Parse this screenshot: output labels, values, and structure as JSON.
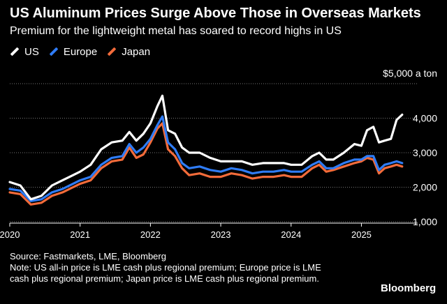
{
  "header": {
    "title": "US Aluminum Prices Surge Above Those in Overseas Markets",
    "subtitle": "Premium for the lightweight metal has soared to record highs in US"
  },
  "legend": [
    {
      "label": "US",
      "color": "#ffffff"
    },
    {
      "label": "Europe",
      "color": "#2f7cf6"
    },
    {
      "label": "Japan",
      "color": "#f26b3a"
    }
  ],
  "footer": {
    "source": "Source: Fastmarkets, LME, Bloomberg",
    "note": "Note: US all-in price is LME cash plus regional premium; Europe price is LME cash plus regional premium; Japan price is LME cash plus regional premium.",
    "brand": "Bloomberg"
  },
  "chart_data": {
    "type": "line",
    "title": "US Aluminum Prices Surge Above Those in Overseas Markets",
    "subtitle": "Premium for the lightweight metal has soared to record highs in US",
    "ylabel": "$5,000 a ton",
    "ylim": [
      1000,
      5000
    ],
    "yticks": [
      1000,
      2000,
      3000,
      4000,
      5000
    ],
    "ytick_labels": [
      "1,000",
      "2,000",
      "3,000",
      "4,000",
      "$5,000 a ton"
    ],
    "xlim": [
      2020.0,
      2025.8
    ],
    "xticks": [
      2020,
      2021,
      2022,
      2023,
      2024,
      2025
    ],
    "xtick_labels": [
      "2020",
      "2021",
      "2022",
      "2023",
      "2024",
      "2025"
    ],
    "grid": "horizontal dotted",
    "legend_position": "top-left",
    "x": [
      2020.0,
      2020.15,
      2020.3,
      2020.45,
      2020.6,
      2020.75,
      2020.9,
      2021.0,
      2021.15,
      2021.3,
      2021.45,
      2021.6,
      2021.7,
      2021.8,
      2021.9,
      2022.0,
      2022.1,
      2022.17,
      2022.25,
      2022.35,
      2022.45,
      2022.55,
      2022.7,
      2022.85,
      2023.0,
      2023.15,
      2023.3,
      2023.45,
      2023.6,
      2023.75,
      2023.9,
      2024.0,
      2024.15,
      2024.3,
      2024.4,
      2024.5,
      2024.6,
      2024.75,
      2024.9,
      2025.0,
      2025.08,
      2025.17,
      2025.25,
      2025.33,
      2025.42,
      2025.5,
      2025.58
    ],
    "series": [
      {
        "name": "US",
        "color": "#ffffff",
        "values": [
          2150,
          2050,
          1650,
          1750,
          2050,
          2200,
          2350,
          2450,
          2650,
          3100,
          3300,
          3350,
          3600,
          3350,
          3550,
          3850,
          4350,
          4650,
          3650,
          3550,
          3150,
          3000,
          3000,
          2850,
          2750,
          2750,
          2750,
          2650,
          2700,
          2700,
          2700,
          2650,
          2650,
          2900,
          3000,
          2800,
          2800,
          3000,
          3250,
          3200,
          3650,
          3750,
          3300,
          3350,
          3400,
          3950,
          4100
        ]
      },
      {
        "name": "Europe",
        "color": "#2f7cf6",
        "values": [
          1950,
          1900,
          1600,
          1650,
          1850,
          1950,
          2100,
          2200,
          2300,
          2650,
          2850,
          2900,
          3250,
          3000,
          3150,
          3400,
          3800,
          4050,
          3300,
          3100,
          2700,
          2550,
          2600,
          2500,
          2450,
          2550,
          2500,
          2400,
          2450,
          2450,
          2500,
          2450,
          2450,
          2650,
          2750,
          2550,
          2550,
          2700,
          2800,
          2800,
          2900,
          2900,
          2500,
          2650,
          2700,
          2750,
          2700
        ]
      },
      {
        "name": "Japan",
        "color": "#f26b3a",
        "values": [
          1850,
          1800,
          1500,
          1550,
          1750,
          1850,
          2000,
          2100,
          2200,
          2550,
          2750,
          2800,
          3150,
          2850,
          2950,
          3300,
          3700,
          3850,
          3100,
          2900,
          2550,
          2350,
          2400,
          2300,
          2300,
          2400,
          2350,
          2250,
          2300,
          2300,
          2350,
          2300,
          2300,
          2550,
          2650,
          2450,
          2500,
          2600,
          2700,
          2750,
          2850,
          2800,
          2400,
          2550,
          2600,
          2650,
          2600
        ]
      }
    ]
  }
}
